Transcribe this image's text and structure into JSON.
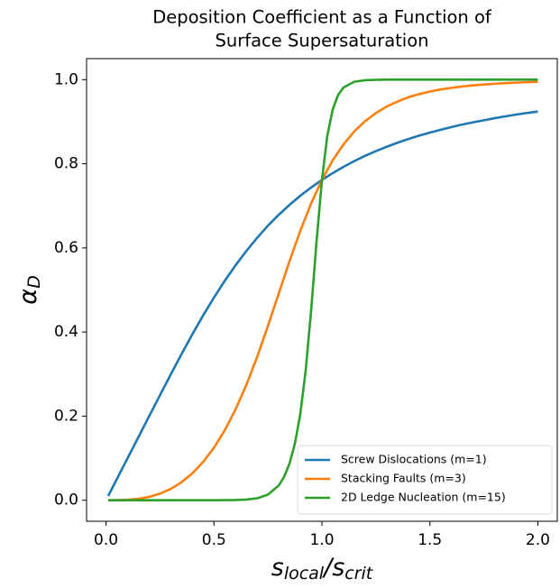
{
  "chart_data": {
    "type": "line",
    "title": [
      "Deposition Coefficient as a Function of",
      "Surface Supersaturation"
    ],
    "xlabel": [
      {
        "text": "s"
      },
      {
        "text": "local",
        "sub": true
      },
      {
        "text": "/s"
      },
      {
        "text": "crit",
        "sub": true
      }
    ],
    "ylabel": [
      {
        "text": "α"
      },
      {
        "text": "D",
        "sub": true
      }
    ],
    "xlim": [
      -0.09,
      2.09
    ],
    "ylim": [
      -0.05,
      1.05
    ],
    "xticks": [
      {
        "value": 0,
        "label": "0.0"
      },
      {
        "value": 0.5,
        "label": "0.5"
      },
      {
        "value": 1,
        "label": "1.0"
      },
      {
        "value": 1.5,
        "label": "1.5"
      },
      {
        "value": 2,
        "label": "2.0"
      }
    ],
    "yticks": [
      {
        "value": 0,
        "label": "0.0"
      },
      {
        "value": 0.2,
        "label": "0.2"
      },
      {
        "value": 0.4,
        "label": "0.4"
      },
      {
        "value": 0.6,
        "label": "0.6"
      },
      {
        "value": 0.8,
        "label": "0.8"
      },
      {
        "value": 1,
        "label": "1.0"
      }
    ],
    "grid": false,
    "legend": "lower right",
    "series": [
      {
        "name": "Screw Dislocations (m=1)",
        "color": "#1f77b4",
        "x": [
          0.01,
          0.05,
          0.1,
          0.15,
          0.2,
          0.25,
          0.3,
          0.35,
          0.4,
          0.45,
          0.5,
          0.55,
          0.6,
          0.65,
          0.7,
          0.75,
          0.8,
          0.85,
          0.9,
          0.95,
          1.0,
          1.05,
          1.1,
          1.15,
          1.2,
          1.25,
          1.3,
          1.35,
          1.4,
          1.45,
          1.5,
          1.55,
          1.6,
          1.65,
          1.7,
          1.75,
          1.8,
          1.85,
          1.9,
          1.95,
          2.0
        ],
        "values": [
          0.01,
          0.05,
          0.1,
          0.15,
          0.2,
          0.2498,
          0.2992,
          0.3477,
          0.3946,
          0.4396,
          0.482,
          0.5217,
          0.5586,
          0.5926,
          0.6239,
          0.6529,
          0.6786,
          0.7023,
          0.7241,
          0.7436,
          0.7616,
          0.7778,
          0.7927,
          0.8064,
          0.8188,
          0.83,
          0.8404,
          0.85,
          0.8588,
          0.867,
          0.8742,
          0.881,
          0.8874,
          0.8932,
          0.8985,
          0.9034,
          0.9083,
          0.9128,
          0.9171,
          0.9208,
          0.9242
        ]
      },
      {
        "name": "Stacking Faults (m=3)",
        "color": "#ff7f0e",
        "x": [
          0.01,
          0.05,
          0.1,
          0.15,
          0.2,
          0.25,
          0.3,
          0.35,
          0.4,
          0.45,
          0.5,
          0.55,
          0.6,
          0.65,
          0.7,
          0.75,
          0.8,
          0.85,
          0.9,
          0.95,
          1.0,
          1.05,
          1.1,
          1.15,
          1.2,
          1.25,
          1.3,
          1.35,
          1.4,
          1.45,
          1.5,
          1.55,
          1.6,
          1.65,
          1.7,
          1.75,
          1.8,
          1.85,
          1.9,
          1.95,
          2.0
        ],
        "values": [
          0,
          0.0001,
          0.001,
          0.0034,
          0.008,
          0.0156,
          0.027,
          0.0429,
          0.064,
          0.0911,
          0.125,
          0.1664,
          0.216,
          0.2742,
          0.341,
          0.4146,
          0.4917,
          0.5686,
          0.6409,
          0.7058,
          0.7616,
          0.8084,
          0.8461,
          0.877,
          0.9013,
          0.9205,
          0.9361,
          0.9481,
          0.9581,
          0.9657,
          0.9718,
          0.9767,
          0.9806,
          0.9838,
          0.9864,
          0.9885,
          0.9902,
          0.9917,
          0.9929,
          0.994,
          0.9948
        ]
      },
      {
        "name": "2D Ledge Nucleation (m=15)",
        "color": "#2ca02c",
        "x": [
          0.01,
          0.5,
          0.6,
          0.65,
          0.7,
          0.75,
          0.8,
          0.825,
          0.85,
          0.875,
          0.9,
          0.925,
          0.95,
          0.975,
          1.0,
          1.025,
          1.05,
          1.075,
          1.1,
          1.15,
          1.2,
          1.25,
          1.3,
          2.0
        ],
        "values": [
          0,
          0,
          0.0005,
          0.0016,
          0.0047,
          0.0134,
          0.0352,
          0.0558,
          0.0874,
          0.1349,
          0.2059,
          0.3095,
          0.4512,
          0.6144,
          0.7616,
          0.8669,
          0.9293,
          0.9637,
          0.9813,
          0.995,
          0.9986,
          0.9996,
          1.0,
          1.0
        ]
      }
    ]
  }
}
